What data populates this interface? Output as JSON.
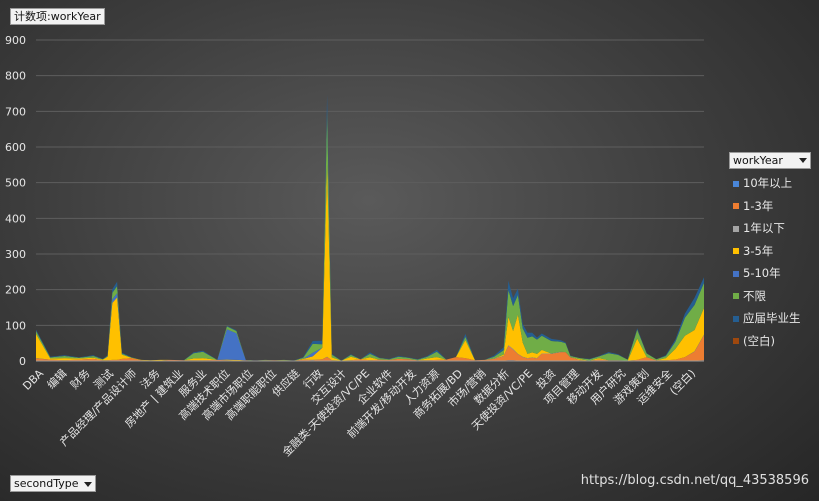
{
  "title_button": "计数项:workYear",
  "row_field_button": "secondType",
  "legend": {
    "title": "workYear",
    "items": [
      {
        "label": "10年以上",
        "color": "#4a86d8"
      },
      {
        "label": "1-3年",
        "color": "#ed7d31"
      },
      {
        "label": "1年以下",
        "color": "#a5a5a5"
      },
      {
        "label": "3-5年",
        "color": "#ffc000"
      },
      {
        "label": "5-10年",
        "color": "#4472c4"
      },
      {
        "label": "不限",
        "color": "#70ad47"
      },
      {
        "label": "应届毕业生",
        "color": "#255e91"
      },
      {
        "label": "(空白)",
        "color": "#9e480e"
      }
    ]
  },
  "watermark": "https://blog.csdn.net/qq_43538596",
  "chart_data": {
    "type": "area",
    "stacked": true,
    "ylim": [
      0,
      900
    ],
    "yticks": [
      0,
      100,
      200,
      300,
      400,
      500,
      600,
      700,
      800,
      900
    ],
    "categories": [
      "DBA",
      "编辑",
      "财务",
      "测试",
      "产品经理/产品设计师",
      "法务",
      "房地产 | 建筑业",
      "服务业",
      "高端技术职位",
      "高端市场职位",
      "高端职能职位",
      "供应链",
      "行政",
      "交互设计",
      "金融类-天使投资/VC/PE",
      "企业软件",
      "前端开发/移动开发",
      "人力资源",
      "商务拓展/BD",
      "市场/营销",
      "数据分析",
      "天使投资/VC/PE",
      "投资",
      "项目管理",
      "移动开发",
      "用户研究",
      "游戏策划",
      "运维安全",
      "(空白)"
    ],
    "x_tick_labels": [
      "DBA",
      "编辑",
      "财务",
      "测试",
      "产品经理/产品设计师",
      "法务",
      "房地产 | 建筑业",
      "服务业",
      "高端技术职位",
      "高端市场职位",
      "高端职能职位",
      "供应链",
      "行政",
      "交互设计",
      "金融类-天使投资/VC/PE",
      "企业软件",
      "前端开发/移动开发",
      "人力资源",
      "商务拓展/BD",
      "市场/营销",
      "数据分析",
      "天使投资/VC/PE",
      "投资",
      "项目管理",
      "移动开发",
      "用户研究",
      "游戏策划",
      "运维安全",
      "(空白)"
    ],
    "x": [
      0,
      1.5,
      3,
      4.5,
      6,
      7,
      7.5,
      8,
      8.5,
      9,
      10,
      11,
      12,
      13,
      14,
      15.5,
      16.5,
      17.5,
      19,
      20,
      21,
      22,
      22.5,
      23,
      24,
      25,
      26,
      27,
      28,
      29,
      30,
      30.5,
      31,
      32,
      33,
      34,
      35,
      36,
      37,
      38,
      39,
      40,
      41,
      42,
      43,
      44,
      45,
      46,
      47,
      48,
      49,
      49.5,
      50,
      50.5,
      51,
      51.5,
      52,
      52.5,
      53,
      54,
      55,
      55.5,
      56,
      57,
      58,
      59,
      60,
      61,
      62,
      63,
      64,
      65,
      66,
      67,
      68,
      69,
      70
    ],
    "series": [
      {
        "name": "10年以上",
        "values": [
          1,
          0,
          0,
          1,
          0,
          0,
          0,
          1,
          0,
          0,
          0,
          0,
          0,
          0,
          0,
          0,
          0,
          0,
          0,
          0,
          0,
          0,
          0,
          0,
          0,
          0,
          0,
          0,
          1,
          0,
          0,
          1,
          0,
          0,
          0,
          0,
          0,
          0,
          0,
          0,
          0,
          0,
          0,
          0,
          0,
          1,
          0,
          0,
          0,
          1,
          1,
          2,
          2,
          1,
          1,
          1,
          1,
          1,
          0,
          0,
          0,
          0,
          0,
          0,
          0,
          0,
          0,
          0,
          0,
          0,
          1,
          0,
          0,
          0,
          1,
          1,
          2
        ]
      },
      {
        "name": "1-3年",
        "values": [
          6,
          4,
          2,
          3,
          6,
          2,
          2,
          2,
          3,
          6,
          8,
          2,
          1,
          1,
          3,
          2,
          2,
          2,
          3,
          2,
          1,
          2,
          1,
          1,
          2,
          2,
          1,
          1,
          3,
          2,
          5,
          10,
          2,
          1,
          2,
          5,
          2,
          4,
          3,
          6,
          5,
          2,
          2,
          3,
          4,
          10,
          8,
          2,
          3,
          5,
          12,
          40,
          30,
          18,
          10,
          6,
          8,
          6,
          20,
          20,
          25,
          25,
          10,
          2,
          1,
          4,
          2,
          2,
          1,
          3,
          10,
          2,
          2,
          4,
          10,
          25,
          70
        ]
      },
      {
        "name": "1年以下",
        "values": [
          1,
          0,
          0,
          0,
          0,
          0,
          0,
          0,
          0,
          0,
          0,
          0,
          0,
          0,
          0,
          0,
          0,
          0,
          0,
          0,
          0,
          0,
          0,
          0,
          0,
          0,
          0,
          0,
          0,
          1,
          0,
          1,
          0,
          0,
          0,
          0,
          0,
          0,
          0,
          0,
          0,
          0,
          0,
          0,
          0,
          0,
          0,
          0,
          0,
          1,
          1,
          2,
          2,
          1,
          1,
          1,
          1,
          1,
          1,
          1,
          1,
          0,
          1,
          0,
          0,
          0,
          0,
          0,
          0,
          0,
          0,
          0,
          0,
          0,
          0,
          1,
          2
        ]
      },
      {
        "name": "3-5年",
        "values": [
          68,
          3,
          6,
          3,
          3,
          2,
          10,
          160,
          175,
          12,
          1,
          1,
          1,
          2,
          0,
          0,
          5,
          6,
          0,
          2,
          2,
          0,
          0,
          0,
          0,
          0,
          1,
          0,
          2,
          10,
          32,
          540,
          8,
          0,
          10,
          0,
          8,
          0,
          0,
          0,
          0,
          0,
          5,
          8,
          0,
          0,
          50,
          0,
          0,
          0,
          4,
          80,
          50,
          110,
          40,
          12,
          14,
          12,
          10,
          0,
          0,
          0,
          0,
          3,
          0,
          4,
          0,
          0,
          0,
          60,
          0,
          0,
          6,
          30,
          60,
          60,
          75
        ]
      },
      {
        "name": "5-10年",
        "values": [
          0,
          0,
          0,
          0,
          0,
          0,
          0,
          10,
          12,
          0,
          0,
          0,
          0,
          0,
          0,
          0,
          0,
          0,
          0,
          85,
          75,
          0,
          0,
          0,
          0,
          0,
          0,
          0,
          0,
          10,
          0,
          0,
          0,
          0,
          0,
          0,
          0,
          0,
          0,
          0,
          0,
          0,
          0,
          0,
          0,
          0,
          0,
          0,
          0,
          0,
          0,
          0,
          0,
          0,
          0,
          0,
          0,
          0,
          0,
          0,
          0,
          0,
          0,
          0,
          0,
          0,
          0,
          0,
          0,
          0,
          0,
          0,
          0,
          0,
          0,
          0,
          0
        ]
      },
      {
        "name": "不限",
        "values": [
          8,
          3,
          6,
          2,
          5,
          1,
          2,
          18,
          20,
          3,
          1,
          0,
          0,
          0,
          0,
          0,
          15,
          18,
          0,
          8,
          6,
          0,
          1,
          0,
          1,
          0,
          1,
          0,
          3,
          25,
          10,
          150,
          8,
          0,
          5,
          0,
          10,
          4,
          2,
          6,
          4,
          2,
          5,
          15,
          0,
          0,
          10,
          0,
          0,
          5,
          12,
          75,
          70,
          55,
          40,
          45,
          45,
          40,
          40,
          35,
          28,
          25,
          3,
          3,
          4,
          5,
          20,
          15,
          3,
          25,
          10,
          3,
          6,
          20,
          50,
          70,
          70
        ]
      },
      {
        "name": "应届毕业生",
        "values": [
          4,
          2,
          2,
          1,
          2,
          1,
          2,
          10,
          12,
          2,
          1,
          0,
          0,
          0,
          0,
          0,
          2,
          3,
          0,
          2,
          2,
          0,
          0,
          0,
          0,
          0,
          0,
          0,
          2,
          8,
          10,
          45,
          2,
          0,
          2,
          0,
          4,
          1,
          1,
          2,
          1,
          1,
          2,
          5,
          0,
          0,
          8,
          0,
          0,
          3,
          8,
          26,
          22,
          18,
          12,
          14,
          10,
          6,
          6,
          6,
          4,
          2,
          1,
          0,
          1,
          1,
          3,
          2,
          0,
          4,
          1,
          0,
          2,
          6,
          12,
          20,
          16
        ]
      },
      {
        "name": "(空白)",
        "values": [
          0,
          0,
          0,
          0,
          0,
          0,
          0,
          0,
          0,
          0,
          0,
          0,
          0,
          0,
          0,
          0,
          0,
          0,
          0,
          0,
          0,
          0,
          0,
          0,
          0,
          0,
          0,
          0,
          0,
          0,
          0,
          0,
          0,
          0,
          0,
          0,
          0,
          0,
          0,
          0,
          0,
          0,
          0,
          0,
          0,
          0,
          0,
          0,
          0,
          0,
          0,
          0,
          0,
          0,
          0,
          0,
          0,
          0,
          0,
          0,
          0,
          0,
          0,
          0,
          0,
          0,
          0,
          0,
          0,
          0,
          0,
          0,
          0,
          0,
          0,
          0,
          0
        ]
      }
    ]
  }
}
